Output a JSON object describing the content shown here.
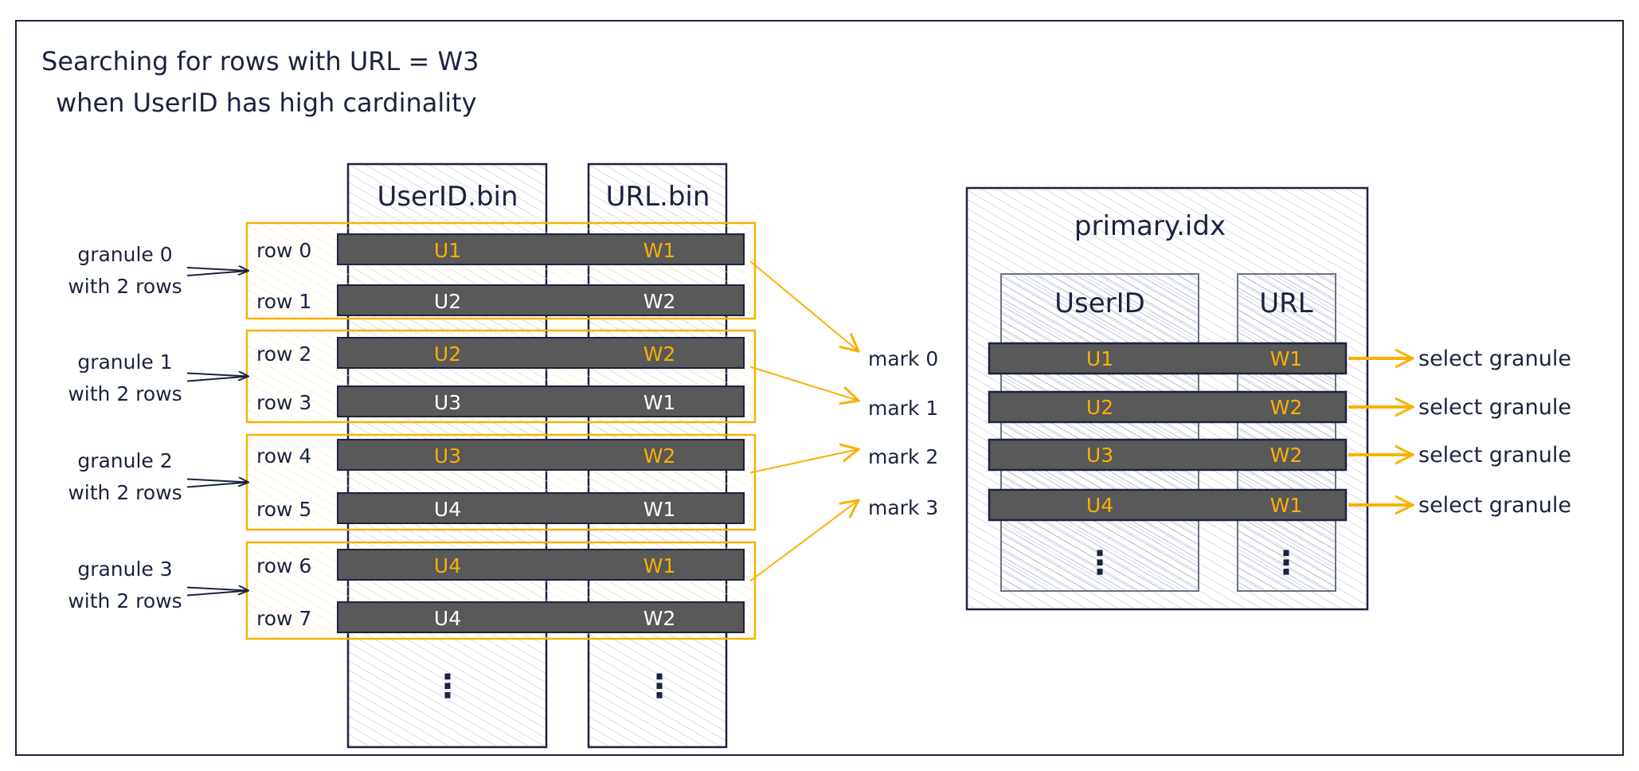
{
  "title": {
    "line1": "Searching for rows with URL = W3",
    "line2": "when UserID has high cardinality"
  },
  "colors": {
    "ink": "#1b2340",
    "highlight": "#fab005",
    "bar": "#595959",
    "hatch": "#c9cfdc"
  },
  "data_files": {
    "userid_column": "UserID.bin",
    "url_column": "URL.bin",
    "rows": [
      {
        "label": "row 0",
        "userid": "U1",
        "url": "W1",
        "highlight": true
      },
      {
        "label": "row 1",
        "userid": "U2",
        "url": "W2",
        "highlight": false
      },
      {
        "label": "row 2",
        "userid": "U2",
        "url": "W2",
        "highlight": true
      },
      {
        "label": "row 3",
        "userid": "U3",
        "url": "W1",
        "highlight": false
      },
      {
        "label": "row 4",
        "userid": "U3",
        "url": "W2",
        "highlight": true
      },
      {
        "label": "row 5",
        "userid": "U4",
        "url": "W1",
        "highlight": false
      },
      {
        "label": "row 6",
        "userid": "U4",
        "url": "W1",
        "highlight": true
      },
      {
        "label": "row 7",
        "userid": "U4",
        "url": "W2",
        "highlight": false
      }
    ],
    "ellipsis": "⋮"
  },
  "granules": [
    {
      "line1": "granule 0",
      "line2": "with 2 rows"
    },
    {
      "line1": "granule 1",
      "line2": "with 2 rows"
    },
    {
      "line1": "granule 2",
      "line2": "with 2 rows"
    },
    {
      "line1": "granule 3",
      "line2": "with 2 rows"
    }
  ],
  "marks": [
    "mark 0",
    "mark 1",
    "mark 2",
    "mark 3"
  ],
  "primary_index": {
    "title": "primary.idx",
    "userid_column": "UserID",
    "url_column": "URL",
    "entries": [
      {
        "userid": "U1",
        "url": "W1",
        "action": "select granule"
      },
      {
        "userid": "U2",
        "url": "W2",
        "action": "select granule"
      },
      {
        "userid": "U3",
        "url": "W2",
        "action": "select granule"
      },
      {
        "userid": "U4",
        "url": "W1",
        "action": "select granule"
      }
    ]
  }
}
